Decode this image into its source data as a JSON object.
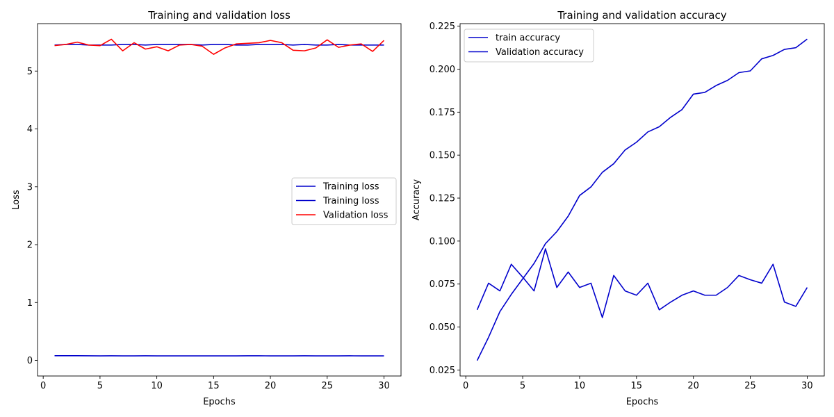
{
  "chart_data": [
    {
      "type": "line",
      "title": "Training and validation loss",
      "xlabel": "Epochs",
      "ylabel": "Loss",
      "xlim": [
        -0.5,
        31.5
      ],
      "ylim": [
        -0.27,
        5.82
      ],
      "xticks": [
        0,
        5,
        10,
        15,
        20,
        25,
        30
      ],
      "yticks": [
        0,
        1,
        2,
        3,
        4,
        5
      ],
      "grid": false,
      "legend_position": "center-right",
      "x": [
        1,
        2,
        3,
        4,
        5,
        6,
        7,
        8,
        9,
        10,
        11,
        12,
        13,
        14,
        15,
        16,
        17,
        18,
        19,
        20,
        21,
        22,
        23,
        24,
        25,
        26,
        27,
        28,
        29,
        30
      ],
      "series": [
        {
          "name": "Training loss",
          "color": "#0000cc",
          "values": [
            0.08,
            0.08,
            0.08,
            0.079,
            0.078,
            0.079,
            0.078,
            0.078,
            0.079,
            0.078,
            0.078,
            0.078,
            0.078,
            0.077,
            0.078,
            0.078,
            0.078,
            0.079,
            0.079,
            0.078,
            0.078,
            0.078,
            0.079,
            0.078,
            0.078,
            0.078,
            0.079,
            0.077,
            0.078,
            0.078
          ]
        },
        {
          "name": "Training loss",
          "color": "#0000cc",
          "values": [
            5.45,
            5.46,
            5.46,
            5.45,
            5.45,
            5.45,
            5.46,
            5.46,
            5.45,
            5.46,
            5.46,
            5.46,
            5.46,
            5.45,
            5.46,
            5.46,
            5.45,
            5.45,
            5.46,
            5.46,
            5.46,
            5.45,
            5.46,
            5.45,
            5.45,
            5.46,
            5.45,
            5.45,
            5.45,
            5.45
          ]
        },
        {
          "name": "Validation loss",
          "color": "#ff0000",
          "values": [
            5.44,
            5.46,
            5.5,
            5.45,
            5.44,
            5.55,
            5.35,
            5.49,
            5.38,
            5.42,
            5.35,
            5.45,
            5.46,
            5.43,
            5.29,
            5.4,
            5.47,
            5.48,
            5.49,
            5.53,
            5.49,
            5.36,
            5.35,
            5.4,
            5.54,
            5.41,
            5.45,
            5.47,
            5.34,
            5.53
          ]
        }
      ]
    },
    {
      "type": "line",
      "title": "Training and validation accuracy",
      "xlabel": "Epochs",
      "ylabel": "Accuracy",
      "xlim": [
        -0.5,
        31.5
      ],
      "ylim": [
        0.0215,
        0.2265
      ],
      "xticks": [
        0,
        5,
        10,
        15,
        20,
        25,
        30
      ],
      "yticks": [
        0.025,
        0.05,
        0.075,
        0.1,
        0.125,
        0.15,
        0.175,
        0.2,
        0.225
      ],
      "ytick_labels": [
        "0.025",
        "0.050",
        "0.075",
        "0.100",
        "0.125",
        "0.150",
        "0.175",
        "0.200",
        "0.225"
      ],
      "grid": false,
      "legend_position": "top-left",
      "x": [
        1,
        2,
        3,
        4,
        5,
        6,
        7,
        8,
        9,
        10,
        11,
        12,
        13,
        14,
        15,
        16,
        17,
        18,
        19,
        20,
        21,
        22,
        23,
        24,
        25,
        26,
        27,
        28,
        29,
        30
      ],
      "series": [
        {
          "name": "train accuracy",
          "color": "#0000cc",
          "values": [
            0.0305,
            0.044,
            0.059,
            0.069,
            0.078,
            0.087,
            0.0985,
            0.1055,
            0.1145,
            0.1265,
            0.1315,
            0.14,
            0.145,
            0.153,
            0.1575,
            0.1635,
            0.1665,
            0.172,
            0.1765,
            0.1855,
            0.1865,
            0.1905,
            0.1935,
            0.198,
            0.199,
            0.206,
            0.208,
            0.2115,
            0.2125,
            0.2175
          ]
        },
        {
          "name": "Validation accuracy",
          "color": "#0000cc",
          "values": [
            0.06,
            0.0755,
            0.071,
            0.0865,
            0.079,
            0.071,
            0.0955,
            0.073,
            0.082,
            0.073,
            0.0755,
            0.0555,
            0.08,
            0.071,
            0.0685,
            0.0755,
            0.06,
            0.0645,
            0.0685,
            0.071,
            0.0685,
            0.0685,
            0.073,
            0.08,
            0.0775,
            0.0755,
            0.0865,
            0.0645,
            0.062,
            0.073
          ]
        }
      ]
    }
  ]
}
